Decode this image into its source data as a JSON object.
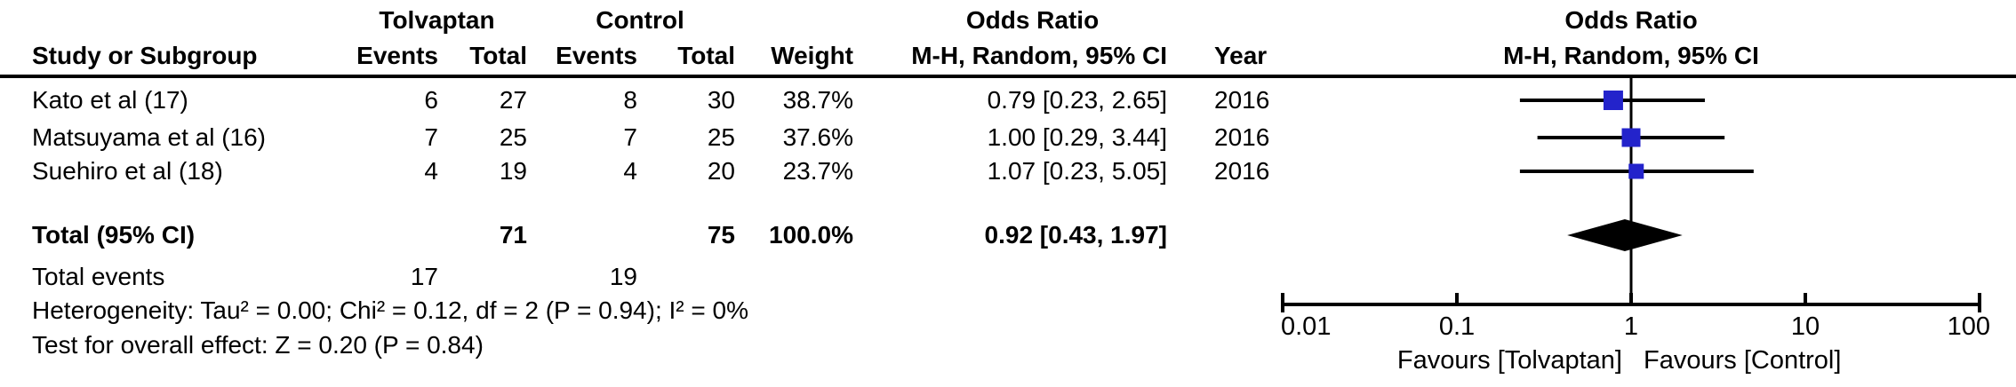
{
  "header": {
    "group_tolvaptan": "Tolvaptan",
    "group_control": "Control",
    "odds_ratio_table": "Odds Ratio",
    "odds_ratio_plot": "Odds Ratio",
    "col_study": "Study or Subgroup",
    "col_events_t": "Events",
    "col_total_t": "Total",
    "col_events_c": "Events",
    "col_total_c": "Total",
    "col_weight": "Weight",
    "col_mh_ci": "M-H, Random, 95% CI",
    "col_year": "Year",
    "col_mh_ci_plot": "M-H, Random, 95% CI"
  },
  "studies": [
    {
      "name": "Kato et al (17)",
      "t_events": "6",
      "t_total": "27",
      "c_events": "8",
      "c_total": "30",
      "weight": "38.7%",
      "or_ci": "0.79 [0.23, 2.65]",
      "year": "2016"
    },
    {
      "name": "Matsuyama et al (16)",
      "t_events": "7",
      "t_total": "25",
      "c_events": "7",
      "c_total": "25",
      "weight": "37.6%",
      "or_ci": "1.00 [0.29, 3.44]",
      "year": "2016"
    },
    {
      "name": "Suehiro et al (18)",
      "t_events": "4",
      "t_total": "19",
      "c_events": "4",
      "c_total": "20",
      "weight": "23.7%",
      "or_ci": "1.07 [0.23, 5.05]",
      "year": "2016"
    }
  ],
  "total_row": {
    "label": "Total (95% CI)",
    "t_total": "71",
    "c_total": "75",
    "weight": "100.0%",
    "or_ci": "0.92 [0.43, 1.97]"
  },
  "total_events_row": {
    "label": "Total events",
    "t_events": "17",
    "c_events": "19"
  },
  "footer": {
    "heterogeneity": "Heterogeneity: Tau² = 0.00; Chi² = 0.12, df = 2 (P = 0.94); I² = 0%",
    "overall_effect": "Test for overall effect: Z = 0.20 (P = 0.84)"
  },
  "chart_data": {
    "type": "forest",
    "effect_measure": "Odds Ratio, M-H, Random, 95% CI",
    "x_scale": "log10",
    "axis": {
      "min": 0.01,
      "max": 100,
      "ticks": [
        0.01,
        0.1,
        1,
        10,
        100
      ],
      "tick_labels": [
        "0.01",
        "0.1",
        "1",
        "10",
        "100"
      ]
    },
    "studies": [
      {
        "name": "Kato et al (17)",
        "or": 0.79,
        "ci_low": 0.23,
        "ci_high": 2.65,
        "weight_pct": 38.7,
        "year": 2016
      },
      {
        "name": "Matsuyama et al (16)",
        "or": 1.0,
        "ci_low": 0.29,
        "ci_high": 3.44,
        "weight_pct": 37.6,
        "year": 2016
      },
      {
        "name": "Suehiro et al (18)",
        "or": 1.07,
        "ci_low": 0.23,
        "ci_high": 5.05,
        "weight_pct": 23.7,
        "year": 2016
      }
    ],
    "total": {
      "or": 0.92,
      "ci_low": 0.43,
      "ci_high": 1.97
    },
    "favours_left": "Favours [Tolvaptan]",
    "favours_right": "Favours [Control]",
    "marker_color": "#2323cb",
    "diamond_color": "#000000",
    "line_color": "#000000"
  }
}
